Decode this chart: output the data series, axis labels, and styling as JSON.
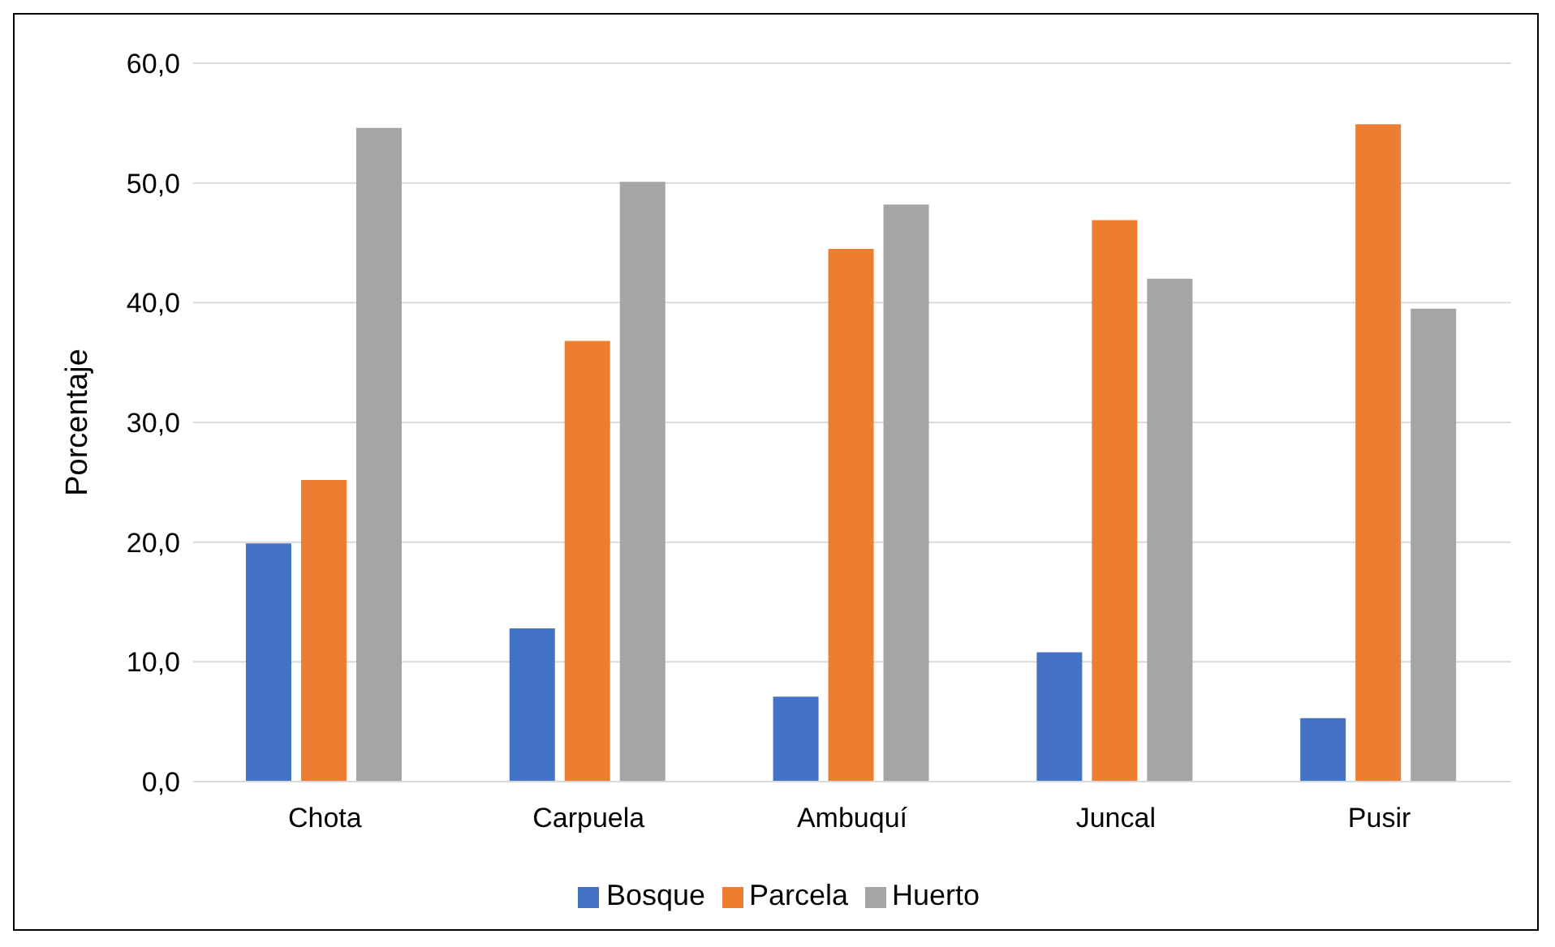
{
  "chart_data": {
    "type": "bar",
    "ylabel": "Porcentaje",
    "categories": [
      "Chota",
      "Carpuela",
      "Ambuquí",
      "Juncal",
      "Pusir"
    ],
    "series": [
      {
        "name": "Bosque",
        "color": "#4472c4",
        "values": [
          19.9,
          12.8,
          7.1,
          10.8,
          5.3
        ]
      },
      {
        "name": "Parcela",
        "color": "#ed7d31",
        "values": [
          25.2,
          36.8,
          44.5,
          46.9,
          54.9
        ]
      },
      {
        "name": "Huerto",
        "color": "#a5a5a5",
        "values": [
          54.6,
          50.1,
          48.2,
          42.0,
          39.5
        ]
      }
    ],
    "ylim": [
      0,
      60
    ],
    "yticks": [
      {
        "value": 0,
        "label": "0,0"
      },
      {
        "value": 10,
        "label": "10,0"
      },
      {
        "value": 20,
        "label": "20,0"
      },
      {
        "value": 30,
        "label": "30,0"
      },
      {
        "value": 40,
        "label": "40,0"
      },
      {
        "value": 50,
        "label": "50,0"
      },
      {
        "value": 60,
        "label": "60,0"
      }
    ],
    "grid": "y",
    "legend": "bottom"
  }
}
